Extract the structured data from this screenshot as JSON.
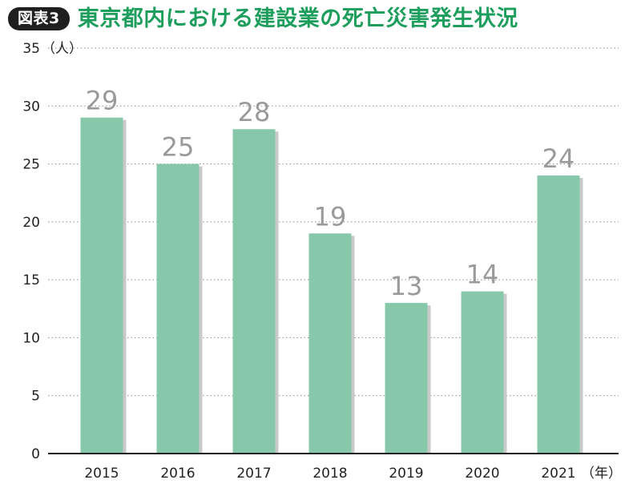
{
  "header": {
    "badge": "図表3",
    "title": "東京都内における建設業の死亡災害発生状況"
  },
  "chart_data": {
    "type": "bar",
    "title": "東京都内における建設業の死亡災害発生状況",
    "categories": [
      "2015",
      "2016",
      "2017",
      "2018",
      "2019",
      "2020",
      "2021"
    ],
    "values": [
      29,
      25,
      28,
      19,
      13,
      14,
      24
    ],
    "data_labels": [
      "29",
      "25",
      "28",
      "19",
      "13",
      "14",
      "24"
    ],
    "yticks": [
      "0",
      "5",
      "10",
      "15",
      "20",
      "25",
      "30",
      "35"
    ],
    "y_unit": "（人）",
    "x_unit": "（年）",
    "ylim": [
      0,
      35
    ],
    "grid": true,
    "legend": "none",
    "colors": {
      "bar": "#88c8aa",
      "data_label": "#9a9a9a",
      "title": "#1e9e5c"
    }
  }
}
